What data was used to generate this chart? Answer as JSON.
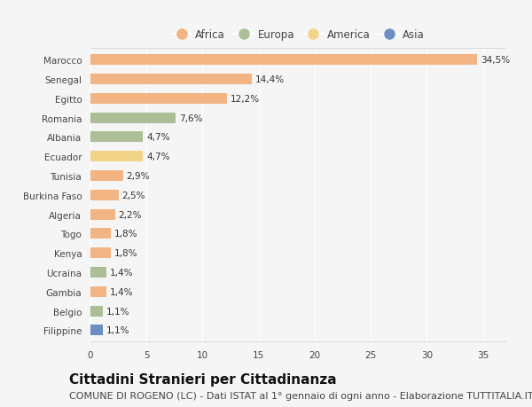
{
  "countries": [
    "Marocco",
    "Senegal",
    "Egitto",
    "Romania",
    "Albania",
    "Ecuador",
    "Tunisia",
    "Burkina Faso",
    "Algeria",
    "Togo",
    "Kenya",
    "Ucraina",
    "Gambia",
    "Belgio",
    "Filippine"
  ],
  "values": [
    34.5,
    14.4,
    12.2,
    7.6,
    4.7,
    4.7,
    2.9,
    2.5,
    2.2,
    1.8,
    1.8,
    1.4,
    1.4,
    1.1,
    1.1
  ],
  "labels": [
    "34,5%",
    "14,4%",
    "12,2%",
    "7,6%",
    "4,7%",
    "4,7%",
    "2,9%",
    "2,5%",
    "2,2%",
    "1,8%",
    "1,8%",
    "1,4%",
    "1,4%",
    "1,1%",
    "1,1%"
  ],
  "continents": [
    "Africa",
    "Africa",
    "Africa",
    "Europa",
    "Europa",
    "America",
    "Africa",
    "Africa",
    "Africa",
    "Africa",
    "Africa",
    "Europa",
    "Africa",
    "Europa",
    "Asia"
  ],
  "continent_colors": {
    "Africa": "#F2B482",
    "Europa": "#ABBE96",
    "America": "#F2D488",
    "Asia": "#6B8FC4"
  },
  "legend_order": [
    "Africa",
    "Europa",
    "America",
    "Asia"
  ],
  "xlim": [
    0,
    37
  ],
  "xticks": [
    0,
    5,
    10,
    15,
    20,
    25,
    30,
    35
  ],
  "title": "Cittadini Stranieri per Cittadinanza",
  "subtitle": "COMUNE DI ROGENO (LC) - Dati ISTAT al 1° gennaio di ogni anno - Elaborazione TUTTITALIA.IT",
  "background_color": "#f5f5f5",
  "bar_height": 0.55,
  "title_fontsize": 11,
  "subtitle_fontsize": 8,
  "label_fontsize": 7.5,
  "tick_fontsize": 7.5,
  "legend_fontsize": 8.5
}
